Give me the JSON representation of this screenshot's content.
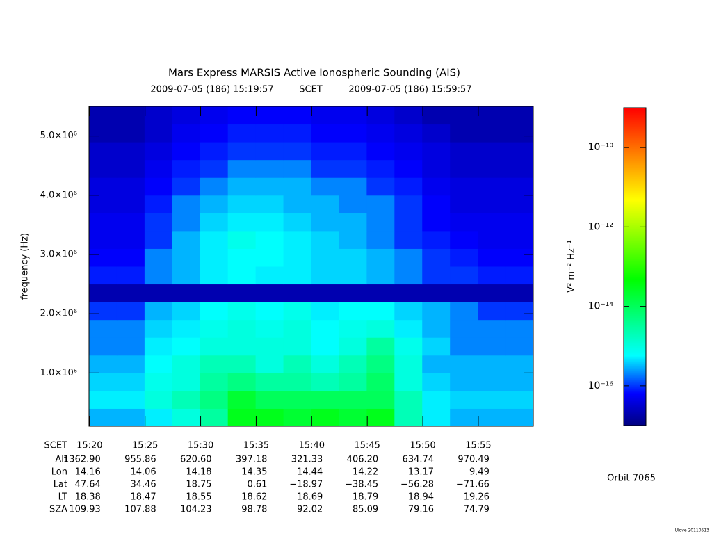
{
  "chart_data": {
    "type": "spectrogram",
    "title": "Mars Express MARSIS Active Ionospheric Sounding (AIS)",
    "start_time": "2009-07-05 (186) 15:19:57",
    "time_label": "SCET",
    "end_time": "2009-07-05 (186) 15:59:57",
    "ylabel": "frequency (Hz)",
    "ylim": [
      100000,
      5500000
    ],
    "yticks": [
      {
        "value": 1000000,
        "label": "1.0×10⁶"
      },
      {
        "value": 2000000,
        "label": "2.0×10⁶"
      },
      {
        "value": 3000000,
        "label": "3.0×10⁶"
      },
      {
        "value": 4000000,
        "label": "4.0×10⁶"
      },
      {
        "value": 5000000,
        "label": "5.0×10⁶"
      }
    ],
    "xticks": [
      "15:20",
      "15:25",
      "15:30",
      "15:35",
      "15:40",
      "15:45",
      "15:50",
      "15:55"
    ],
    "time_bins": [
      "15:19:57",
      "15:22:27",
      "15:24:57",
      "15:27:27",
      "15:29:57",
      "15:32:27",
      "15:34:57",
      "15:37:27",
      "15:39:57",
      "15:42:27",
      "15:44:57",
      "15:47:27",
      "15:49:57",
      "15:52:27",
      "15:54:57",
      "15:57:27",
      "15:59:57"
    ],
    "freq_bins": [
      100000,
      400000,
      700000,
      1000000,
      1300000,
      1600000,
      1900000,
      2200000,
      2500000,
      2800000,
      3100000,
      3400000,
      3700000,
      4000000,
      4300000,
      4600000,
      4900000,
      5200000,
      5500000
    ],
    "z": [
      [
        3e-16,
        3e-16,
        5e-16,
        1e-15,
        3e-15,
        3e-14,
        3e-14,
        2e-14,
        3e-14,
        2e-14,
        3e-14,
        2e-15,
        5e-16,
        3e-16,
        3e-16,
        3e-16
      ],
      [
        5e-16,
        5e-16,
        1e-15,
        2e-15,
        5e-15,
        2e-14,
        1e-14,
        1e-14,
        1e-14,
        1e-14,
        1e-14,
        2e-15,
        5e-16,
        4e-16,
        4e-16,
        4e-16
      ],
      [
        4e-16,
        4e-16,
        8e-16,
        1e-15,
        3e-15,
        5e-15,
        3e-15,
        3e-15,
        2e-15,
        3e-15,
        8e-15,
        1e-15,
        4e-16,
        3e-16,
        3e-16,
        3e-16
      ],
      [
        3e-16,
        3e-16,
        6e-16,
        1e-15,
        2e-15,
        2e-15,
        1e-15,
        2e-15,
        1e-15,
        2e-15,
        5e-15,
        1e-15,
        3e-16,
        3e-16,
        3e-16,
        3e-16
      ],
      [
        2e-16,
        2e-16,
        5e-16,
        6e-16,
        1e-15,
        1e-15,
        1e-15,
        1e-15,
        6e-16,
        1e-15,
        3e-15,
        8e-16,
        4e-16,
        2e-16,
        2e-16,
        2e-16
      ],
      [
        2e-16,
        2e-16,
        4e-16,
        5e-16,
        8e-16,
        1e-15,
        8e-16,
        1e-15,
        6e-16,
        8e-16,
        1e-15,
        5e-16,
        3e-16,
        2e-16,
        2e-16,
        2e-16
      ],
      [
        1e-16,
        1e-16,
        3e-16,
        4e-16,
        6e-16,
        8e-16,
        6e-16,
        8e-16,
        5e-16,
        6e-16,
        6e-16,
        4e-16,
        3e-16,
        2e-16,
        1e-16,
        1e-16
      ],
      [
        2e-17,
        2e-17,
        2e-17,
        2e-17,
        2e-17,
        2e-17,
        2e-17,
        2e-17,
        2e-17,
        2e-17,
        2e-17,
        2e-17,
        2e-17,
        2e-17,
        2e-17,
        2e-17
      ],
      [
        8e-17,
        8e-17,
        2e-16,
        3e-16,
        5e-16,
        6e-16,
        5e-16,
        5e-16,
        4e-16,
        4e-16,
        3e-16,
        2e-16,
        1e-16,
        1e-16,
        8e-17,
        8e-17
      ],
      [
        6e-17,
        6e-17,
        2e-16,
        3e-16,
        5e-16,
        6e-16,
        6e-16,
        5e-16,
        4e-16,
        4e-16,
        3e-16,
        2e-16,
        1e-16,
        8e-17,
        6e-17,
        6e-17
      ],
      [
        5e-17,
        5e-17,
        1e-16,
        3e-16,
        5e-16,
        8e-16,
        6e-16,
        5e-16,
        4e-16,
        3e-16,
        2e-16,
        1e-16,
        8e-17,
        6e-17,
        5e-17,
        5e-17
      ],
      [
        5e-17,
        5e-17,
        1e-16,
        2e-16,
        4e-16,
        5e-16,
        5e-16,
        4e-16,
        3e-16,
        3e-16,
        2e-16,
        1e-16,
        6e-17,
        5e-17,
        5e-17,
        5e-17
      ],
      [
        4e-17,
        4e-17,
        8e-17,
        2e-16,
        3e-16,
        4e-16,
        4e-16,
        3e-16,
        3e-16,
        2e-16,
        2e-16,
        1e-16,
        6e-17,
        4e-17,
        4e-17,
        4e-17
      ],
      [
        4e-17,
        4e-17,
        6e-17,
        1e-16,
        2e-16,
        3e-16,
        3e-16,
        3e-16,
        2e-16,
        2e-16,
        1e-16,
        8e-17,
        5e-17,
        4e-17,
        4e-17,
        4e-17
      ],
      [
        3e-17,
        3e-17,
        5e-17,
        8e-17,
        1e-16,
        2e-16,
        2e-16,
        2e-16,
        1e-16,
        1e-16,
        8e-17,
        6e-17,
        4e-17,
        3e-17,
        3e-17,
        3e-17
      ],
      [
        3e-17,
        3e-17,
        4e-17,
        6e-17,
        8e-17,
        1e-16,
        1e-16,
        1e-16,
        8e-17,
        8e-17,
        6e-17,
        5e-17,
        4e-17,
        3e-17,
        3e-17,
        3e-17
      ],
      [
        2e-17,
        2e-17,
        3e-17,
        5e-17,
        6e-17,
        8e-17,
        8e-17,
        8e-17,
        6e-17,
        6e-17,
        5e-17,
        4e-17,
        3e-17,
        2e-17,
        2e-17,
        2e-17
      ],
      [
        2e-17,
        2e-17,
        3e-17,
        4e-17,
        5e-17,
        6e-17,
        6e-17,
        6e-17,
        5e-17,
        5e-17,
        4e-17,
        3e-17,
        2e-17,
        2e-17,
        2e-17,
        2e-17
      ]
    ],
    "colorbar": {
      "label": "V² m⁻² Hz⁻¹",
      "scale": "log",
      "lim": [
        1e-17,
        1e-09
      ],
      "ticks": [
        {
          "value": 1e-16,
          "label": "10⁻¹⁶"
        },
        {
          "value": 1e-14,
          "label": "10⁻¹⁴"
        },
        {
          "value": 1e-12,
          "label": "10⁻¹²"
        },
        {
          "value": 1e-10,
          "label": "10⁻¹⁰"
        }
      ]
    },
    "ephemeris": [
      {
        "label": "Alt",
        "values": [
          "1362.90",
          "955.86",
          "620.60",
          "397.18",
          "321.33",
          "406.20",
          "634.74",
          "970.49"
        ]
      },
      {
        "label": "Lon",
        "values": [
          "14.16",
          "14.06",
          "14.18",
          "14.35",
          "14.44",
          "14.22",
          "13.17",
          "9.49"
        ]
      },
      {
        "label": "Lat",
        "values": [
          "47.64",
          "34.46",
          "18.75",
          "0.61",
          "−18.97",
          "−38.45",
          "−56.28",
          "−71.66"
        ]
      },
      {
        "label": "LT",
        "values": [
          "18.38",
          "18.47",
          "18.55",
          "18.62",
          "18.69",
          "18.79",
          "18.94",
          "19.26"
        ]
      },
      {
        "label": "SZA",
        "values": [
          "109.93",
          "107.88",
          "104.23",
          "98.78",
          "92.02",
          "85.09",
          "79.16",
          "74.79"
        ]
      }
    ],
    "orbit": "Orbit 7065",
    "footer": "Ulove 20110513"
  }
}
